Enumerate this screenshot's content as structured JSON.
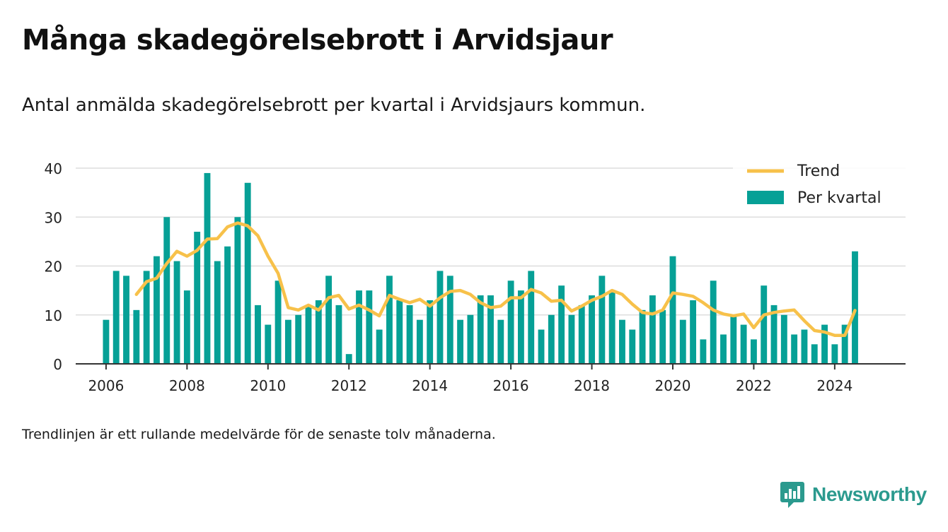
{
  "header": {
    "title": "Många skadegörelsebrott i Arvidsjaur",
    "subtitle": "Antal anmälda skadegörelsebrott per kvartal i Arvidsjaurs kommun."
  },
  "footnote": "Trendlinjen är ett rullande medelvärde för de senaste tolv månaderna.",
  "brand": {
    "name": "Newsworthy",
    "icon": "newsworthy-logo-icon",
    "color": "#2b9a8e"
  },
  "colors": {
    "bar": "#06a096",
    "trend": "#f7c14a",
    "grid": "#dddddd",
    "axis": "#333333"
  },
  "chart_data": {
    "type": "bar",
    "title": "Många skadegörelsebrott i Arvidsjaur",
    "xlabel": "",
    "ylabel": "",
    "ylim": [
      0,
      40
    ],
    "yticks": [
      0,
      10,
      20,
      30,
      40
    ],
    "xlim": [
      2005.25,
      2025.75
    ],
    "xticks": [
      "2006",
      "2008",
      "2010",
      "2012",
      "2014",
      "2016",
      "2018",
      "2020",
      "2022",
      "2024"
    ],
    "grid": true,
    "legend_position": "top-right",
    "x_start_year": 2006,
    "periods_per_year": 4,
    "series": [
      {
        "name": "Per kvartal",
        "kind": "bar",
        "values": [
          9,
          19,
          18,
          11,
          19,
          22,
          30,
          21,
          15,
          27,
          39,
          21,
          24,
          30,
          37,
          12,
          8,
          17,
          9,
          10,
          12,
          13,
          18,
          12,
          2,
          15,
          15,
          7,
          18,
          13,
          12,
          9,
          13,
          19,
          18,
          9,
          10,
          14,
          14,
          9,
          17,
          15,
          19,
          7,
          10,
          16,
          10,
          12,
          14,
          18,
          15,
          9,
          7,
          11,
          14,
          11,
          22,
          9,
          13,
          5,
          17,
          6,
          10,
          8,
          5,
          16,
          12,
          10,
          6,
          7,
          4,
          8,
          4,
          8,
          23
        ]
      },
      {
        "name": "Trend",
        "kind": "line",
        "values": [
          null,
          null,
          null,
          14.2,
          16.8,
          17.5,
          20.5,
          23.0,
          22.0,
          23.2,
          25.5,
          25.6,
          28.0,
          28.8,
          28.2,
          26.2,
          22.0,
          18.5,
          11.5,
          11.0,
          12.0,
          11.0,
          13.5,
          14.0,
          11.2,
          12.0,
          11.0,
          9.8,
          14.0,
          13.2,
          12.5,
          13.2,
          11.8,
          13.5,
          14.8,
          15.0,
          14.2,
          12.5,
          11.5,
          11.8,
          13.5,
          13.5,
          15.2,
          14.5,
          12.8,
          13.0,
          10.8,
          11.8,
          13.0,
          13.8,
          15.0,
          14.2,
          12.2,
          10.5,
          10.2,
          11.0,
          14.5,
          14.2,
          13.8,
          12.5,
          11.0,
          10.2,
          9.8,
          10.2,
          7.4,
          10.0,
          10.5,
          10.8,
          11.0,
          8.8,
          6.8,
          6.5,
          5.8,
          5.8,
          10.9
        ]
      }
    ]
  }
}
